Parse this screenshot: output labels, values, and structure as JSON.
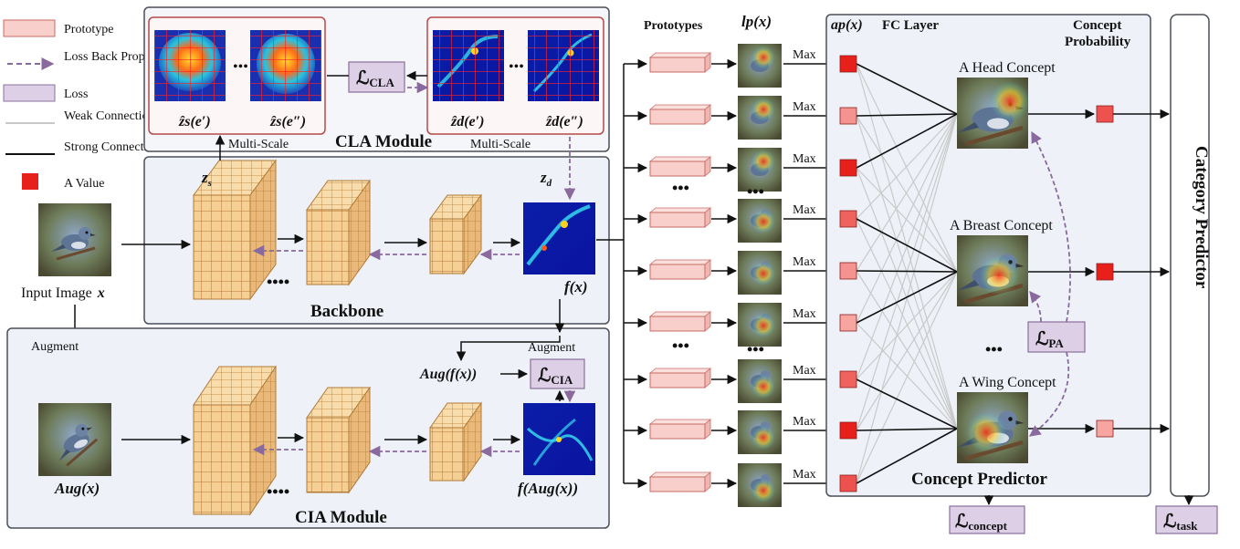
{
  "legend": {
    "prototype": "Prototype",
    "loss_back_propagation": "Loss Back Propagation",
    "loss": "Loss",
    "weak_connection": "Weak Connection",
    "strong_connection": "Strong Connection",
    "a_value": "A Value"
  },
  "modules": {
    "cla": "CLA Module",
    "backbone": "Backbone",
    "cia": "CIA Module",
    "concept_predictor": "Concept Predictor",
    "category_predictor": "Category Predictor"
  },
  "labels": {
    "multi_scale": "Multi-Scale",
    "input_image": "Input Image",
    "x_var": "x",
    "augment": "Augment",
    "aug_x": "Aug(x)",
    "aug_fx": "Aug(f(x))",
    "f_x": "f(x)",
    "f_aug_x": "f(Aug(x))",
    "z_s": "z",
    "z_s_sub": "s",
    "z_d": "z",
    "z_d_sub": "d",
    "z_hat_s1": "ẑs(e′)",
    "z_hat_s2": "ẑs(e″)",
    "z_hat_d1": "ẑd(e′)",
    "z_hat_d2": "ẑd(e″)",
    "prototypes": "Prototypes",
    "lp_x": "lp(x)",
    "ap_x": "ap(x)",
    "fc_layer": "FC Layer",
    "concept_probability": "Concept Probability",
    "max": "Max",
    "head_concept": "A Head Concept",
    "breast_concept": "A Breast Concept",
    "wing_concept": "A Wing Concept",
    "ellipsis_dots": "••••",
    "ellipsis_small": "•••"
  },
  "losses": {
    "cla": "CLA",
    "cia": "CIA",
    "pa": "PA",
    "concept": "concept",
    "task": "task",
    "symbol": "ℒ"
  },
  "colors": {
    "prototype_fill": "#f8cfcb",
    "prototype_stroke": "#c96b64",
    "loss_fill": "#ddd0e6",
    "loss_stroke": "#8a6f9c",
    "block_fill": "#f6cf94",
    "block_stroke": "#b07a36",
    "panel_fill": "#eef2f8",
    "panel_stroke": "#4a4f5a",
    "cla_fill": "#fdf6f6",
    "cla_stroke": "#b84848",
    "strong_red": "#e8201c",
    "light_red": "#f9c6c2",
    "mid_red": "#f07068",
    "dash_purple": "#8a6a9e"
  },
  "activation_levels": [
    1.0,
    0.3,
    1.0,
    0.6,
    0.3,
    0.2,
    0.6,
    1.0,
    0.7
  ],
  "concept_probability_levels": [
    0.7,
    1.0,
    0.2
  ]
}
